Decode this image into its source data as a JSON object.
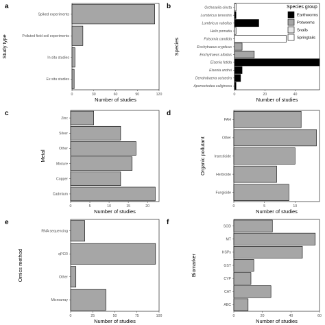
{
  "chart_data": [
    {
      "panel": "a",
      "type": "bar",
      "orientation": "horizontal",
      "ylabel": "Study type",
      "xlabel": "Number of studies",
      "categories": [
        "Spiked experiments",
        "Polluted field soil experiments",
        "In situ studies",
        "Ex situ studies"
      ],
      "values": [
        114,
        15,
        4,
        3
      ],
      "xlim": [
        0,
        120
      ],
      "xticks": [
        0,
        30,
        60,
        90,
        120
      ],
      "fill": "#a6a6a6"
    },
    {
      "panel": "b",
      "type": "bar",
      "orientation": "horizontal",
      "ylabel": "Species",
      "xlabel": "Number of studies",
      "categories": [
        "Orcheseila cincta",
        "Lumbricus terrestris",
        "Lumbricus rubellus",
        "Helix pomatia",
        "Folsomia candida",
        "Enchytraeus crypticus",
        "Enchytraeus albidus",
        "Eisenia fetida",
        "Eisenia andrei",
        "Dendrobaena octaedra",
        "Aporrectodea caliginosa"
      ],
      "values": [
        1,
        1,
        16,
        1,
        34,
        5,
        13,
        56,
        5,
        4,
        1
      ],
      "groups": [
        "Springtails",
        "Earthworms",
        "Earthworms",
        "Snails",
        "Springtails",
        "Potworms",
        "Potworms",
        "Earthworms",
        "Earthworms",
        "Earthworms",
        "Earthworms"
      ],
      "xlim": [
        0,
        56
      ],
      "xticks": [
        0,
        20,
        40
      ],
      "legend": {
        "title": "Species group",
        "entries": [
          {
            "name": "Earthworms",
            "color": "#000000"
          },
          {
            "name": "Potworms",
            "color": "#a6a6a6"
          },
          {
            "name": "Snails",
            "color": "#e6e6e6"
          },
          {
            "name": "Springtails",
            "color": "#ffffff"
          }
        ],
        "placement": "top-right"
      }
    },
    {
      "panel": "c",
      "type": "bar",
      "orientation": "horizontal",
      "ylabel": "Metal",
      "xlabel": "Number of studies",
      "categories": [
        "Zinc",
        "Silver",
        "Other",
        "Mixture",
        "Copper",
        "Cadmium"
      ],
      "values": [
        6,
        13,
        17,
        16,
        13,
        22
      ],
      "xlim": [
        0,
        23
      ],
      "xticks": [
        0,
        5,
        10,
        15,
        20
      ],
      "fill": "#a6a6a6"
    },
    {
      "panel": "d",
      "type": "bar",
      "orientation": "horizontal",
      "ylabel": "Organic pollutant",
      "xlabel": "Number of studies",
      "categories": [
        "PAH",
        "Other",
        "Insecticide",
        "Herbicide",
        "Fungicide"
      ],
      "values": [
        11,
        13.5,
        10,
        7,
        9
      ],
      "xlim": [
        0,
        14
      ],
      "xticks": [
        0,
        5,
        10
      ],
      "fill": "#a6a6a6"
    },
    {
      "panel": "e",
      "type": "bar",
      "orientation": "horizontal",
      "ylabel": "Omics method",
      "xlabel": "Number of studies",
      "categories": [
        "RNA sequencing",
        "qPCR",
        "Other",
        "Microarray"
      ],
      "values": [
        16,
        96,
        6,
        40
      ],
      "xlim": [
        0,
        100
      ],
      "xticks": [
        0,
        25,
        50,
        75,
        100
      ],
      "fill": "#a6a6a6"
    },
    {
      "panel": "f",
      "type": "bar",
      "orientation": "horizontal",
      "ylabel": "Biomarker",
      "xlabel": "Number of studies",
      "categories": [
        "SOD",
        "MT",
        "HSPs",
        "GST",
        "CYP",
        "CAT",
        "ABC"
      ],
      "values": [
        27,
        57,
        48,
        14,
        12,
        26,
        10
      ],
      "xlim": [
        0,
        60
      ],
      "xticks": [
        0,
        20,
        40,
        60
      ],
      "fill": "#a6a6a6"
    }
  ]
}
